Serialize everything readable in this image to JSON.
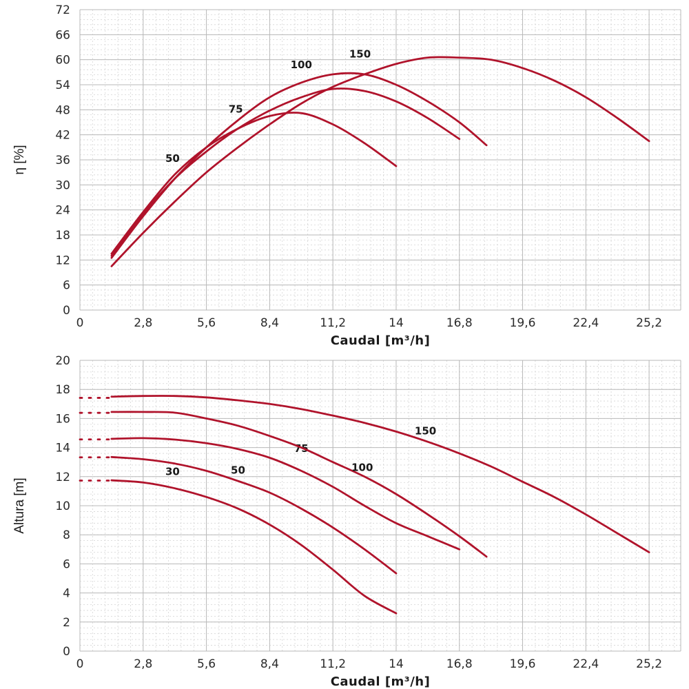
{
  "chart_data": [
    {
      "type": "line",
      "xlabel": "Caudal [m³/h]",
      "ylabel": "η [%]",
      "xlim": [
        0,
        26.6
      ],
      "ylim": [
        0,
        72
      ],
      "xticks": [
        "0",
        "2,8",
        "5,6",
        "8,4",
        "11,2",
        "14",
        "16,8",
        "19,6",
        "22,4",
        "25,2"
      ],
      "yticks": [
        "0",
        "6",
        "12",
        "18",
        "24",
        "30",
        "36",
        "42",
        "48",
        "54",
        "60",
        "66",
        "72"
      ],
      "grid": true,
      "line_color": "#b0132b",
      "series": [
        {
          "name": "50",
          "label_at": [
            4.1,
            35.5
          ],
          "points": [
            [
              1.4,
              13.5
            ],
            [
              2.8,
              23.5
            ],
            [
              4.2,
              32.5
            ],
            [
              5.6,
              39.0
            ],
            [
              7.0,
              43.5
            ],
            [
              8.4,
              46.5
            ],
            [
              9.8,
              47.2
            ],
            [
              11.2,
              44.5
            ],
            [
              12.6,
              40.0
            ],
            [
              14.0,
              34.5
            ]
          ]
        },
        {
          "name": "75",
          "label_at": [
            6.9,
            47.3
          ],
          "points": [
            [
              1.4,
              13.0
            ],
            [
              2.8,
              23.0
            ],
            [
              4.2,
              31.5
            ],
            [
              5.6,
              38.0
            ],
            [
              7.0,
              43.5
            ],
            [
              8.4,
              47.8
            ],
            [
              9.8,
              51.0
            ],
            [
              11.2,
              53.0
            ],
            [
              12.6,
              52.5
            ],
            [
              14.0,
              50.0
            ],
            [
              15.4,
              46.0
            ],
            [
              16.8,
              41.0
            ]
          ]
        },
        {
          "name": "100",
          "label_at": [
            9.8,
            58.0
          ],
          "points": [
            [
              1.4,
              12.5
            ],
            [
              2.8,
              22.5
            ],
            [
              4.2,
              31.5
            ],
            [
              5.6,
              39.0
            ],
            [
              7.0,
              45.5
            ],
            [
              8.4,
              51.0
            ],
            [
              9.8,
              54.5
            ],
            [
              11.2,
              56.5
            ],
            [
              12.6,
              56.5
            ],
            [
              14.0,
              54.0
            ],
            [
              15.4,
              50.0
            ],
            [
              16.8,
              45.0
            ],
            [
              18.0,
              39.5
            ]
          ]
        },
        {
          "name": "150",
          "label_at": [
            12.4,
            60.5
          ],
          "points": [
            [
              1.4,
              10.5
            ],
            [
              2.8,
              18.5
            ],
            [
              4.2,
              26.0
            ],
            [
              5.6,
              33.0
            ],
            [
              7.0,
              39.0
            ],
            [
              8.4,
              44.5
            ],
            [
              9.8,
              49.5
            ],
            [
              11.2,
              53.5
            ],
            [
              12.6,
              56.5
            ],
            [
              14.0,
              59.0
            ],
            [
              15.4,
              60.5
            ],
            [
              16.8,
              60.5
            ],
            [
              18.2,
              60.0
            ],
            [
              19.6,
              58.0
            ],
            [
              21.0,
              55.0
            ],
            [
              22.4,
              51.0
            ],
            [
              23.8,
              46.0
            ],
            [
              25.2,
              40.5
            ]
          ]
        }
      ]
    },
    {
      "type": "line",
      "xlabel": "Caudal [m³/h]",
      "ylabel": "Altura [m]",
      "xlim": [
        0,
        26.6
      ],
      "ylim": [
        0,
        20
      ],
      "xticks": [
        "0",
        "2,8",
        "5,6",
        "8,4",
        "11,2",
        "14",
        "16,8",
        "19,6",
        "22,4",
        "25,2"
      ],
      "yticks": [
        "0",
        "2",
        "4",
        "6",
        "8",
        "10",
        "12",
        "14",
        "16",
        "18",
        "20"
      ],
      "grid": true,
      "line_color": "#b0132b",
      "series": [
        {
          "name": "30",
          "label_at": [
            4.1,
            12.1
          ],
          "shutoff": 11.7,
          "points": [
            [
              1.4,
              11.75
            ],
            [
              2.8,
              11.6
            ],
            [
              4.2,
              11.2
            ],
            [
              5.6,
              10.6
            ],
            [
              7.0,
              9.8
            ],
            [
              8.4,
              8.7
            ],
            [
              9.8,
              7.3
            ],
            [
              11.2,
              5.6
            ],
            [
              12.6,
              3.8
            ],
            [
              14.0,
              2.6
            ]
          ]
        },
        {
          "name": "50",
          "label_at": [
            7.0,
            12.2
          ],
          "shutoff": 13.3,
          "points": [
            [
              1.4,
              13.35
            ],
            [
              2.8,
              13.2
            ],
            [
              4.2,
              12.9
            ],
            [
              5.6,
              12.4
            ],
            [
              7.0,
              11.7
            ],
            [
              8.4,
              10.9
            ],
            [
              9.8,
              9.8
            ],
            [
              11.2,
              8.5
            ],
            [
              12.6,
              7.0
            ],
            [
              14.0,
              5.35
            ]
          ]
        },
        {
          "name": "75",
          "label_at": [
            9.8,
            13.7
          ],
          "shutoff": 14.5,
          "points": [
            [
              1.4,
              14.6
            ],
            [
              2.8,
              14.65
            ],
            [
              4.2,
              14.55
            ],
            [
              5.6,
              14.3
            ],
            [
              7.0,
              13.9
            ],
            [
              8.4,
              13.3
            ],
            [
              9.8,
              12.4
            ],
            [
              11.2,
              11.3
            ],
            [
              12.6,
              10.0
            ],
            [
              14.0,
              8.8
            ],
            [
              15.4,
              7.9
            ],
            [
              16.8,
              7.0
            ]
          ]
        },
        {
          "name": "100",
          "label_at": [
            12.5,
            12.4
          ],
          "shutoff": 16.3,
          "points": [
            [
              1.4,
              16.45
            ],
            [
              2.8,
              16.45
            ],
            [
              4.2,
              16.4
            ],
            [
              5.6,
              16.0
            ],
            [
              7.0,
              15.5
            ],
            [
              8.4,
              14.8
            ],
            [
              9.8,
              14.0
            ],
            [
              11.2,
              13.0
            ],
            [
              12.6,
              12.0
            ],
            [
              14.0,
              10.8
            ],
            [
              15.4,
              9.4
            ],
            [
              16.8,
              7.9
            ],
            [
              18.0,
              6.5
            ]
          ]
        },
        {
          "name": "150",
          "label_at": [
            15.3,
            14.9
          ],
          "shutoff": 17.3,
          "points": [
            [
              1.4,
              17.5
            ],
            [
              2.8,
              17.55
            ],
            [
              4.2,
              17.55
            ],
            [
              5.6,
              17.45
            ],
            [
              7.0,
              17.25
            ],
            [
              8.4,
              17.0
            ],
            [
              9.8,
              16.65
            ],
            [
              11.2,
              16.2
            ],
            [
              12.6,
              15.7
            ],
            [
              14.0,
              15.1
            ],
            [
              15.4,
              14.4
            ],
            [
              16.8,
              13.6
            ],
            [
              18.2,
              12.7
            ],
            [
              19.6,
              11.65
            ],
            [
              21.0,
              10.6
            ],
            [
              22.4,
              9.4
            ],
            [
              23.8,
              8.1
            ],
            [
              25.2,
              6.8
            ]
          ]
        }
      ]
    }
  ]
}
